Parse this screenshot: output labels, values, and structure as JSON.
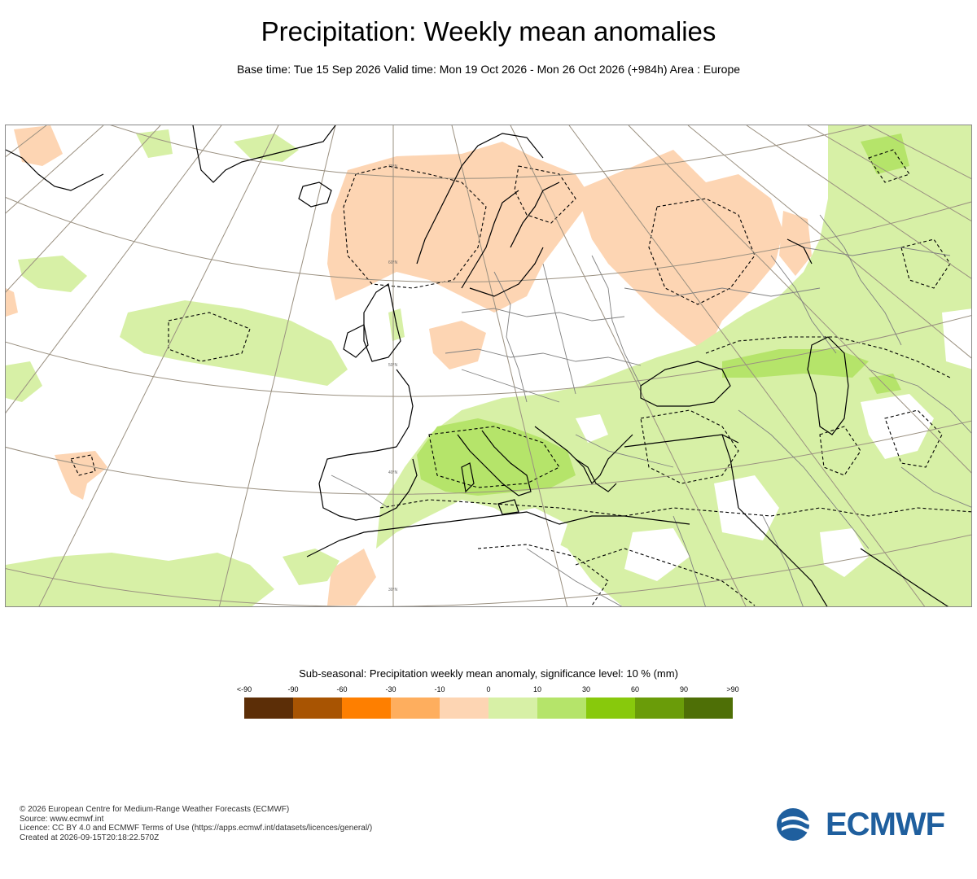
{
  "title": "Precipitation: Weekly mean anomalies",
  "subtitle": "Base time: Tue 15 Sep 2026 Valid time: Mon 19 Oct 2026 - Mon 26 Oct 2026 (+984h) Area : Europe",
  "map": {
    "region": "Europe",
    "latitude_labels": [
      "70°N",
      "60°N",
      "50°N",
      "40°N",
      "30°N"
    ],
    "colors": {
      "dry_light": "#fdd5b3",
      "wet_light": "#d7f0a6",
      "wet_mid": "#b5e46a",
      "coast": "#000000",
      "graticule": "#9a9080",
      "border": "#808080"
    }
  },
  "legend": {
    "title": "Sub-seasonal: Precipitation weekly mean anomaly, significance level: 10 % (mm)",
    "labels": [
      "<-90",
      "-90",
      "-60",
      "-30",
      "-10",
      "0",
      "10",
      "30",
      "60",
      "90",
      ">90"
    ],
    "colors": [
      "#5c2e07",
      "#a85402",
      "#fe7f00",
      "#feae5e",
      "#fdd5b3",
      "#d7f0a6",
      "#b5e46a",
      "#88c90c",
      "#6a9c09",
      "#4e6f06"
    ]
  },
  "footer": {
    "copyright": "© 2026 European Centre for Medium-Range Weather Forecasts (ECMWF)",
    "source": "Source: www.ecmwf.int",
    "licence": "Licence: CC BY 4.0 and ECMWF Terms of Use (https://apps.ecmwf.int/datasets/licences/general/)",
    "created": "Created at 2026-09-15T20:18:22.570Z"
  },
  "logo": {
    "text": "ECMWF",
    "color": "#1f5f9e"
  }
}
